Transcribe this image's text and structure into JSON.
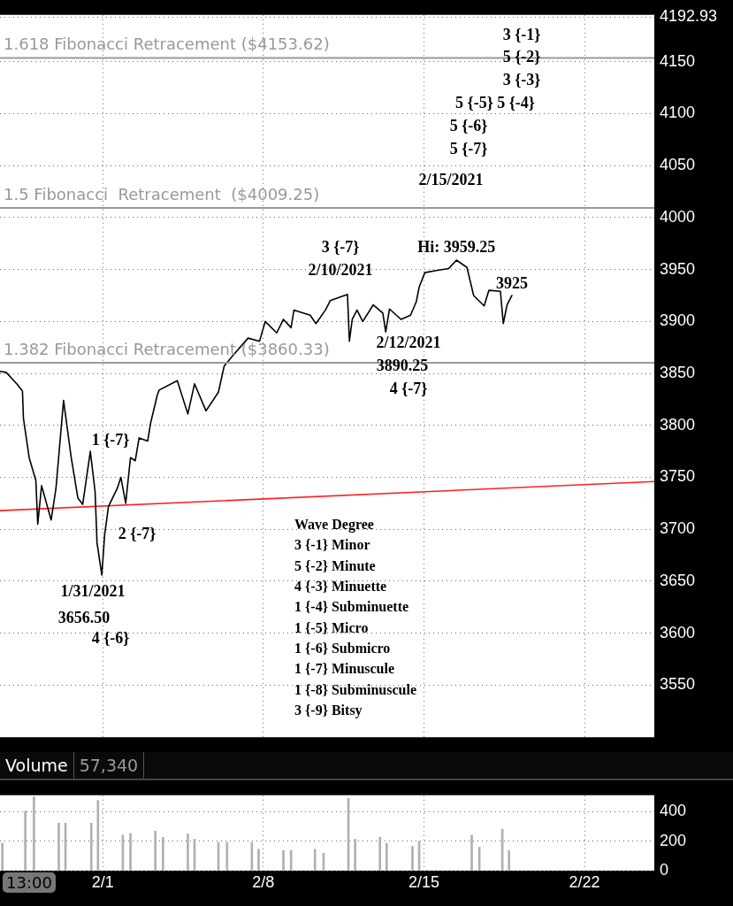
{
  "chart_data": [
    {
      "type": "line",
      "xlim": [
        "2021-01-27T12:30",
        "2021-02-25T01:00"
      ],
      "xticks": [
        {
          "value": "2021-02-01",
          "label": null
        },
        {
          "value": "2021-02-08",
          "label": null
        },
        {
          "value": "2021-02-15",
          "label": null
        },
        {
          "value": "2021-02-22",
          "label": null
        }
      ],
      "ylim": [
        3500,
        4195
      ],
      "yticks": [
        3550,
        3600,
        3650,
        3700,
        3750,
        3800,
        3850,
        3900,
        3950,
        4000,
        4050,
        4100,
        4150,
        {
          "value": 4192.93,
          "label": "4192.93"
        }
      ],
      "tick_labels": "y",
      "grid": true,
      "legend": false,
      "marker": "none",
      "line_style": "solid",
      "series": [
        {
          "color": "#000000",
          "x": [
            "2021-01-27T12:30",
            "2021-01-27T19:00",
            "2021-01-28T07:00",
            "2021-01-28T12:00",
            "2021-01-28T13:00",
            "2021-01-28T19:00",
            "2021-01-29T02:00",
            "2021-01-29T04:00",
            "2021-01-29T08:00",
            "2021-01-29T18:00",
            "2021-01-29T23:00",
            "2021-01-30T07:00",
            "2021-01-30T15:00",
            "2021-01-30T22:00",
            "2021-01-31T03:00",
            "2021-01-31T11:00",
            "2021-01-31T16:00",
            "2021-01-31T18:00",
            "2021-01-31T23:00",
            "2021-02-01T02:00",
            "2021-02-01T06:00",
            "2021-02-01T15:00",
            "2021-02-01T19:00",
            "2021-02-02T00:00",
            "2021-02-02T05:00",
            "2021-02-02T10:00",
            "2021-02-02T14:00",
            "2021-02-02T23:00",
            "2021-02-03T02:00",
            "2021-02-03T09:00",
            "2021-02-03T11:00",
            "2021-02-04T06:00",
            "2021-02-04T17:00",
            "2021-02-05T00:00",
            "2021-02-05T12:00",
            "2021-02-06T01:00",
            "2021-02-06T07:00",
            "2021-02-06T16:00",
            "2021-02-07T08:00",
            "2021-02-07T20:00",
            "2021-02-08T02:00",
            "2021-02-08T14:00",
            "2021-02-08T21:00",
            "2021-02-09T05:00",
            "2021-02-09T08:00",
            "2021-02-10T01:00",
            "2021-02-10T07:00",
            "2021-02-10T17:00",
            "2021-02-10T22:00",
            "2021-02-11T16:00",
            "2021-02-11T18:00",
            "2021-02-11T21:00",
            "2021-02-12T02:00",
            "2021-02-12T08:00",
            "2021-02-12T19:00",
            "2021-02-13T05:00",
            "2021-02-13T08:00",
            "2021-02-13T12:00",
            "2021-02-14T00:00",
            "2021-02-14T10:00",
            "2021-02-14T16:00",
            "2021-02-14T19:00",
            "2021-02-15T01:00",
            "2021-02-15T13:00",
            "2021-02-16T02:00",
            "2021-02-16T10:00",
            "2021-02-16T21:00",
            "2021-02-17T04:00",
            "2021-02-17T15:00",
            "2021-02-17T20:00",
            "2021-02-18T08:00",
            "2021-02-18T11:00",
            "2021-02-18T15:00",
            "2021-02-18T20:00"
          ],
          "values": [
            3852,
            3851,
            3839,
            3833,
            3807,
            3769,
            3747,
            3705,
            3742,
            3709,
            3739,
            3824,
            3769,
            3730,
            3724,
            3775,
            3736,
            3687,
            3656,
            3695,
            3722,
            3739,
            3750,
            3725,
            3769,
            3766,
            3788,
            3785,
            3802,
            3829,
            3834,
            3843,
            3811,
            3840,
            3814,
            3832,
            3857,
            3867,
            3884,
            3881,
            3900,
            3889,
            3902,
            3894,
            3911,
            3906,
            3898,
            3911,
            3920,
            3926,
            3881,
            3902,
            3911,
            3900,
            3916,
            3908,
            3890,
            3912,
            3902,
            3906,
            3919,
            3933,
            3947,
            3949,
            3951,
            3959,
            3952,
            3925,
            3915,
            3930,
            3929,
            3898,
            3916,
            3925
          ]
        },
        {
          "type": "line",
          "color": "#ff2020",
          "x": [
            "2021-01-27T12:30",
            "2021-02-25T01:00"
          ],
          "values": [
            3718,
            3746
          ]
        }
      ],
      "ref_lines": [
        {
          "axis": "y",
          "value": 4153.62,
          "label": "1.618 Fibonacci Retracement ($4153.62)",
          "color": "#999999"
        },
        {
          "axis": "y",
          "value": 4009.25,
          "label": "1.5 Fibonacci  Retracement  ($4009.25)",
          "color": "#999999"
        },
        {
          "axis": "y",
          "value": 3860.33,
          "label": "1.382 Fibonacci Retracement ($3860.33)",
          "color": "#999999"
        }
      ],
      "annotations": [
        {
          "text": "Hi: 3959.25",
          "x": "2021-02-16T10:00",
          "y": 3959.25
        },
        {
          "text": "3925",
          "x": "2021-02-18T20:00",
          "y": 3925
        },
        "3 {-1}",
        "5 {-2}",
        "3 {-3}",
        "5 {-5} 5 {-4}",
        "5 {-6}",
        "5 {-7}",
        "2/15/2021",
        "3 {-7}",
        "2/10/2021",
        "2/12/2021",
        "3890.25",
        "4 {-7}",
        "1 {-7}",
        "2 {-7}",
        "1/31/2021",
        "3656.50",
        "4 {-6}",
        "Wave Degree",
        "3 {-1} Minor",
        "5 {-2} Minute",
        "4 {-3} Minuette",
        "1 {-4} Subminuette",
        "1 {-5} Micro",
        "1 {-6} Submicro",
        "1 {-7} Minuscule",
        "1 {-8} Subminuscule",
        "3 {-9} Bitsy"
      ]
    },
    {
      "type": "bar",
      "title": "Volume",
      "annotations": [
        "57,340",
        "13:00"
      ],
      "color": "#b0b0b0",
      "xlim": [
        "2021-01-27T12:30",
        "2021-02-25T01:00"
      ],
      "xticks": [
        {
          "value": "2021-02-01",
          "label": "2/1"
        },
        {
          "value": "2021-02-08",
          "label": "2/8"
        },
        {
          "value": "2021-02-15",
          "label": "2/15"
        },
        {
          "value": "2021-02-22",
          "label": "2/22"
        }
      ],
      "ylim": [
        0,
        510
      ],
      "yticks": [
        0,
        200,
        400
      ],
      "grid": true,
      "legend": false,
      "x": [
        "2021-01-27T15:00",
        "2021-01-28T15:00",
        "2021-01-29T00:00",
        "2021-01-30T02:00",
        "2021-01-30T09:00",
        "2021-01-31T12:00",
        "2021-01-31T19:00",
        "2021-02-01T21:00",
        "2021-02-02T05:00",
        "2021-02-03T07:00",
        "2021-02-03T15:00",
        "2021-02-04T17:00",
        "2021-02-05T00:00",
        "2021-02-06T01:00",
        "2021-02-06T10:00",
        "2021-02-07T12:00",
        "2021-02-07T19:00",
        "2021-02-08T21:00",
        "2021-02-09T05:00",
        "2021-02-10T06:00",
        "2021-02-10T15:00",
        "2021-02-11T17:00",
        "2021-02-12T00:00",
        "2021-02-13T02:00",
        "2021-02-13T09:00",
        "2021-02-14T12:00",
        "2021-02-14T19:00",
        "2021-02-17T02:00",
        "2021-02-17T10:00",
        "2021-02-18T10:00",
        "2021-02-18T17:00"
      ],
      "values": [
        185,
        402,
        500,
        321,
        321,
        321,
        476,
        240,
        253,
        267,
        226,
        248,
        212,
        191,
        191,
        191,
        145,
        136,
        136,
        145,
        117,
        489,
        212,
        226,
        185,
        164,
        199,
        240,
        158,
        280,
        136
      ]
    }
  ]
}
